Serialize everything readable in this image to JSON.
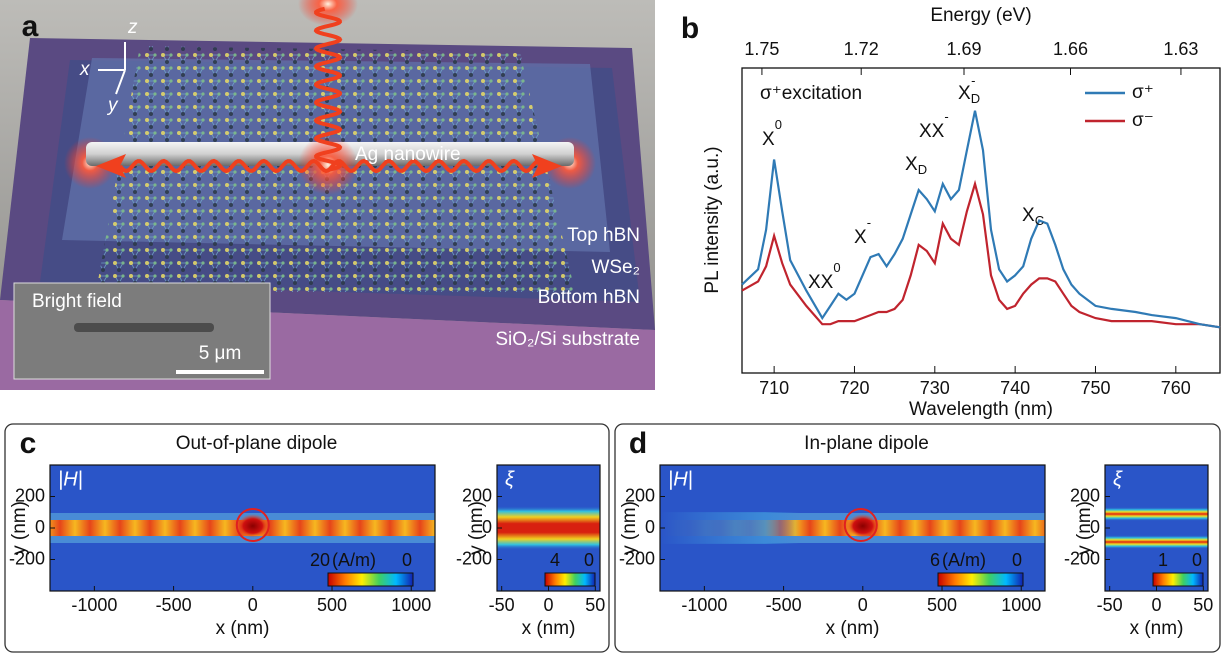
{
  "panel_a": {
    "label": "a",
    "axes": [
      "z",
      "x",
      "y"
    ],
    "labels": [
      "Ag nanowire",
      "Top hBN",
      "WSe₂",
      "Bottom hBN",
      "SiO₂/Si substrate"
    ],
    "inset": {
      "title": "Bright field",
      "scale": "5 μm"
    }
  },
  "chart_data": {
    "type": "line",
    "label": "b",
    "x2label": "Energy (eV)",
    "xlabel": "Wavelength (nm)",
    "ylabel": "PL intensity (a.u.)",
    "x": [
      706,
      708,
      709,
      710,
      711,
      712,
      714,
      716,
      717,
      718,
      719,
      720,
      721,
      722,
      723,
      724,
      725,
      726,
      727,
      728,
      729,
      730,
      731,
      732,
      733,
      734,
      735,
      736,
      737,
      738,
      739,
      740,
      741,
      742,
      743,
      744,
      745,
      746,
      747,
      748,
      750,
      752,
      755,
      757,
      760,
      763,
      765.5
    ],
    "series": [
      {
        "name": "σ⁺",
        "color": "#2f7ab5",
        "values": [
          29,
          34,
          47,
          70,
          53,
          37,
          27,
          18,
          22,
          26,
          24,
          26,
          32,
          38,
          39,
          35,
          39,
          44,
          52,
          60,
          57,
          53,
          62,
          57,
          60,
          73,
          86,
          73,
          47,
          34,
          30,
          32,
          35,
          44,
          50,
          49,
          42,
          34,
          29,
          26,
          22,
          21,
          20,
          19,
          18,
          16,
          15
        ]
      },
      {
        "name": "σ⁻",
        "color": "#c0242e",
        "values": [
          27,
          30,
          35,
          45,
          36,
          29,
          22,
          16,
          16,
          17,
          17,
          17,
          18,
          19,
          20,
          20,
          21,
          24,
          32,
          42,
          40,
          36,
          49,
          44,
          42,
          53,
          62,
          52,
          32,
          24,
          21,
          22,
          26,
          29,
          31,
          31,
          30,
          26,
          22,
          20,
          18,
          17,
          17,
          17,
          16,
          16,
          15
        ]
      }
    ],
    "xlim": [
      706,
      765.5
    ],
    "xticks": [
      710,
      720,
      730,
      740,
      750,
      760
    ],
    "x2ticks": [
      1.75,
      1.72,
      1.69,
      1.66,
      1.63
    ],
    "ylim": [
      0,
      100
    ],
    "annotations": [
      {
        "text": "σ⁺excitation"
      },
      {
        "text": "X",
        "sup": "0"
      },
      {
        "text": "XX",
        "sup": "0"
      },
      {
        "text": "X",
        "sup": "-"
      },
      {
        "text": "X",
        "sub": "D"
      },
      {
        "text": "XX",
        "sup": "-"
      },
      {
        "text": "X",
        "sub": "D",
        "sup": "-"
      },
      {
        "text": "X",
        "sub": "C"
      }
    ]
  },
  "field_panels": [
    {
      "label": "c",
      "title": "Out-of-plane dipole",
      "field": {
        "label": "|H|",
        "xlabel": "x (nm)",
        "ylabel": "y (nm)",
        "xlim": [
          -1280,
          1150
        ],
        "xticks": [
          -1000,
          -500,
          0,
          500,
          1000
        ],
        "ylim": [
          -400,
          400
        ],
        "yticks": [
          200,
          0,
          -200
        ],
        "colorbar": {
          "ticks": [
            20,
            0
          ],
          "unit": "(A/m)"
        }
      },
      "chirality": {
        "label": "ξ",
        "xlabel": "x (nm)",
        "ylabel": "y (nm)",
        "xlim": [
          -55,
          55
        ],
        "xticks": [
          -50,
          0,
          50
        ],
        "ylim": [
          -400,
          400
        ],
        "yticks": [
          200,
          0,
          -200
        ],
        "colorbar": {
          "ticks": [
            4,
            0
          ]
        }
      }
    },
    {
      "label": "d",
      "title": "In-plane dipole",
      "field": {
        "label": "|H|",
        "xlabel": "x (nm)",
        "ylabel": "y (nm)",
        "xlim": [
          -1280,
          1150
        ],
        "xticks": [
          -1000,
          -500,
          0,
          500,
          1000
        ],
        "ylim": [
          -400,
          400
        ],
        "yticks": [
          200,
          0,
          -200
        ],
        "colorbar": {
          "ticks": [
            6,
            0
          ],
          "unit": "(A/m)"
        }
      },
      "chirality": {
        "label": "ξ",
        "xlabel": "x (nm)",
        "ylabel": "y (nm)",
        "xlim": [
          -55,
          55
        ],
        "xticks": [
          -50,
          0,
          50
        ],
        "ylim": [
          -400,
          400
        ],
        "yticks": [
          200,
          0,
          -200
        ],
        "colorbar": {
          "ticks": [
            1,
            0
          ]
        }
      }
    }
  ]
}
